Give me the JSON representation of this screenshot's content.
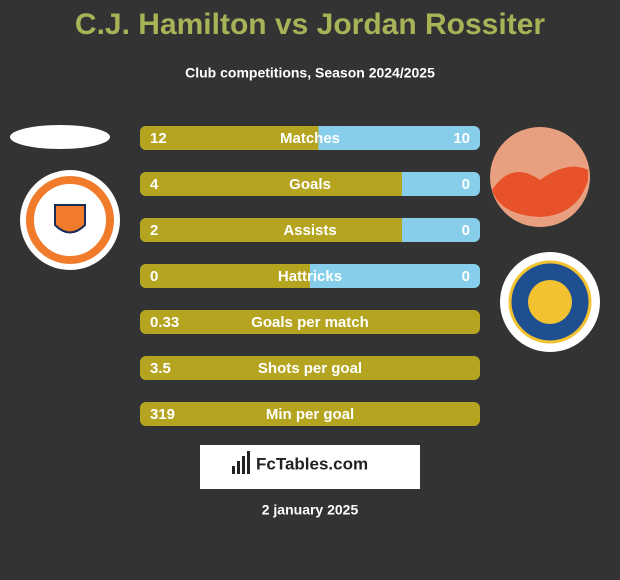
{
  "title": "C.J. Hamilton vs Jordan Rossiter",
  "subtitle": "Club competitions, Season 2024/2025",
  "rows": [
    {
      "label": "Matches",
      "left": 12,
      "right": 10
    },
    {
      "label": "Goals",
      "left": 4,
      "right": 0
    },
    {
      "label": "Assists",
      "left": 2,
      "right": 0
    },
    {
      "label": "Hattricks",
      "left": 0,
      "right": 0
    },
    {
      "label": "Goals per match",
      "left": 0.33
    },
    {
      "label": "Shots per goal",
      "left": 3.5
    },
    {
      "label": "Min per goal",
      "left": 319
    }
  ],
  "brand": "FcTables.com",
  "date": "2 january 2025"
}
